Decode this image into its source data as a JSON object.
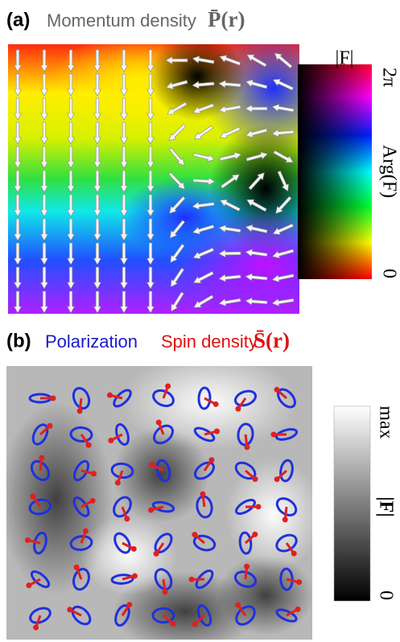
{
  "panel_a": {
    "label": "(a)",
    "title": "Momentum density",
    "symbol": "P̄(r)",
    "colorbar": {
      "title": "|F|",
      "top": "2π",
      "axis_label": "Arg(F)",
      "bottom": "0"
    }
  },
  "panel_b": {
    "label": "(b)",
    "title_1": "Polarization",
    "title_2": "Spin density",
    "symbol": "S̄(r)",
    "colorbar": {
      "top": "max",
      "axis_label": "|F|",
      "bottom": "0"
    }
  }
}
